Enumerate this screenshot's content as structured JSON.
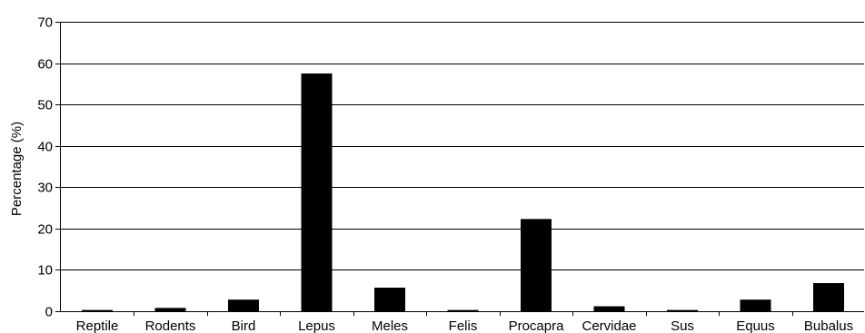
{
  "chart_data": {
    "type": "bar",
    "title": "",
    "xlabel": "",
    "ylabel": "Percentage (%)",
    "ylim": [
      0,
      70
    ],
    "yticks": [
      0,
      10,
      20,
      30,
      40,
      50,
      60,
      70
    ],
    "grid": "horizontal",
    "categories": [
      "Reptile",
      "Rodents",
      "Bird",
      "Lepus",
      "Meles",
      "Felis",
      "Procapra",
      "Cervidae",
      "Sus",
      "Equus",
      "Bubalus"
    ],
    "values": [
      0.3,
      0.8,
      2.8,
      57.5,
      5.7,
      0.3,
      22.3,
      1.2,
      0.3,
      2.8,
      6.8
    ],
    "bar_color": "#000000"
  }
}
